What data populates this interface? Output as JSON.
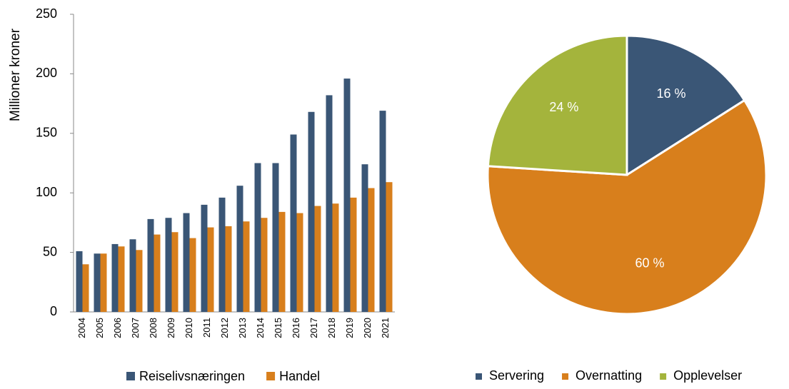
{
  "chart_data": [
    {
      "type": "bar",
      "ylabel": "Millioner kroner",
      "categories": [
        "2004",
        "2005",
        "2006",
        "2007",
        "2008",
        "2009",
        "2010",
        "2011",
        "2012",
        "2013",
        "2014",
        "2015",
        "2016",
        "2017",
        "2018",
        "2019",
        "2020",
        "2021"
      ],
      "series": [
        {
          "name": "Reiselivsnæringen",
          "color": "#3a5676",
          "values": [
            51,
            49,
            57,
            61,
            78,
            79,
            83,
            90,
            96,
            106,
            125,
            125,
            149,
            168,
            182,
            196,
            124,
            169
          ]
        },
        {
          "name": "Handel",
          "color": "#d87f1c",
          "values": [
            40,
            49,
            55,
            52,
            65,
            67,
            62,
            71,
            72,
            76,
            79,
            84,
            83,
            89,
            91,
            96,
            104,
            109
          ]
        }
      ],
      "ylim": [
        0,
        250
      ],
      "yticks": [
        0,
        50,
        100,
        150,
        200,
        250
      ]
    },
    {
      "type": "pie",
      "categories": [
        "Servering",
        "Overnatting",
        "Opplevelser"
      ],
      "values": [
        16,
        60,
        24
      ],
      "value_labels": [
        "16 %",
        "60 %",
        "24 %"
      ],
      "colors": [
        "#3a5676",
        "#d87f1c",
        "#a4b43c"
      ]
    }
  ]
}
